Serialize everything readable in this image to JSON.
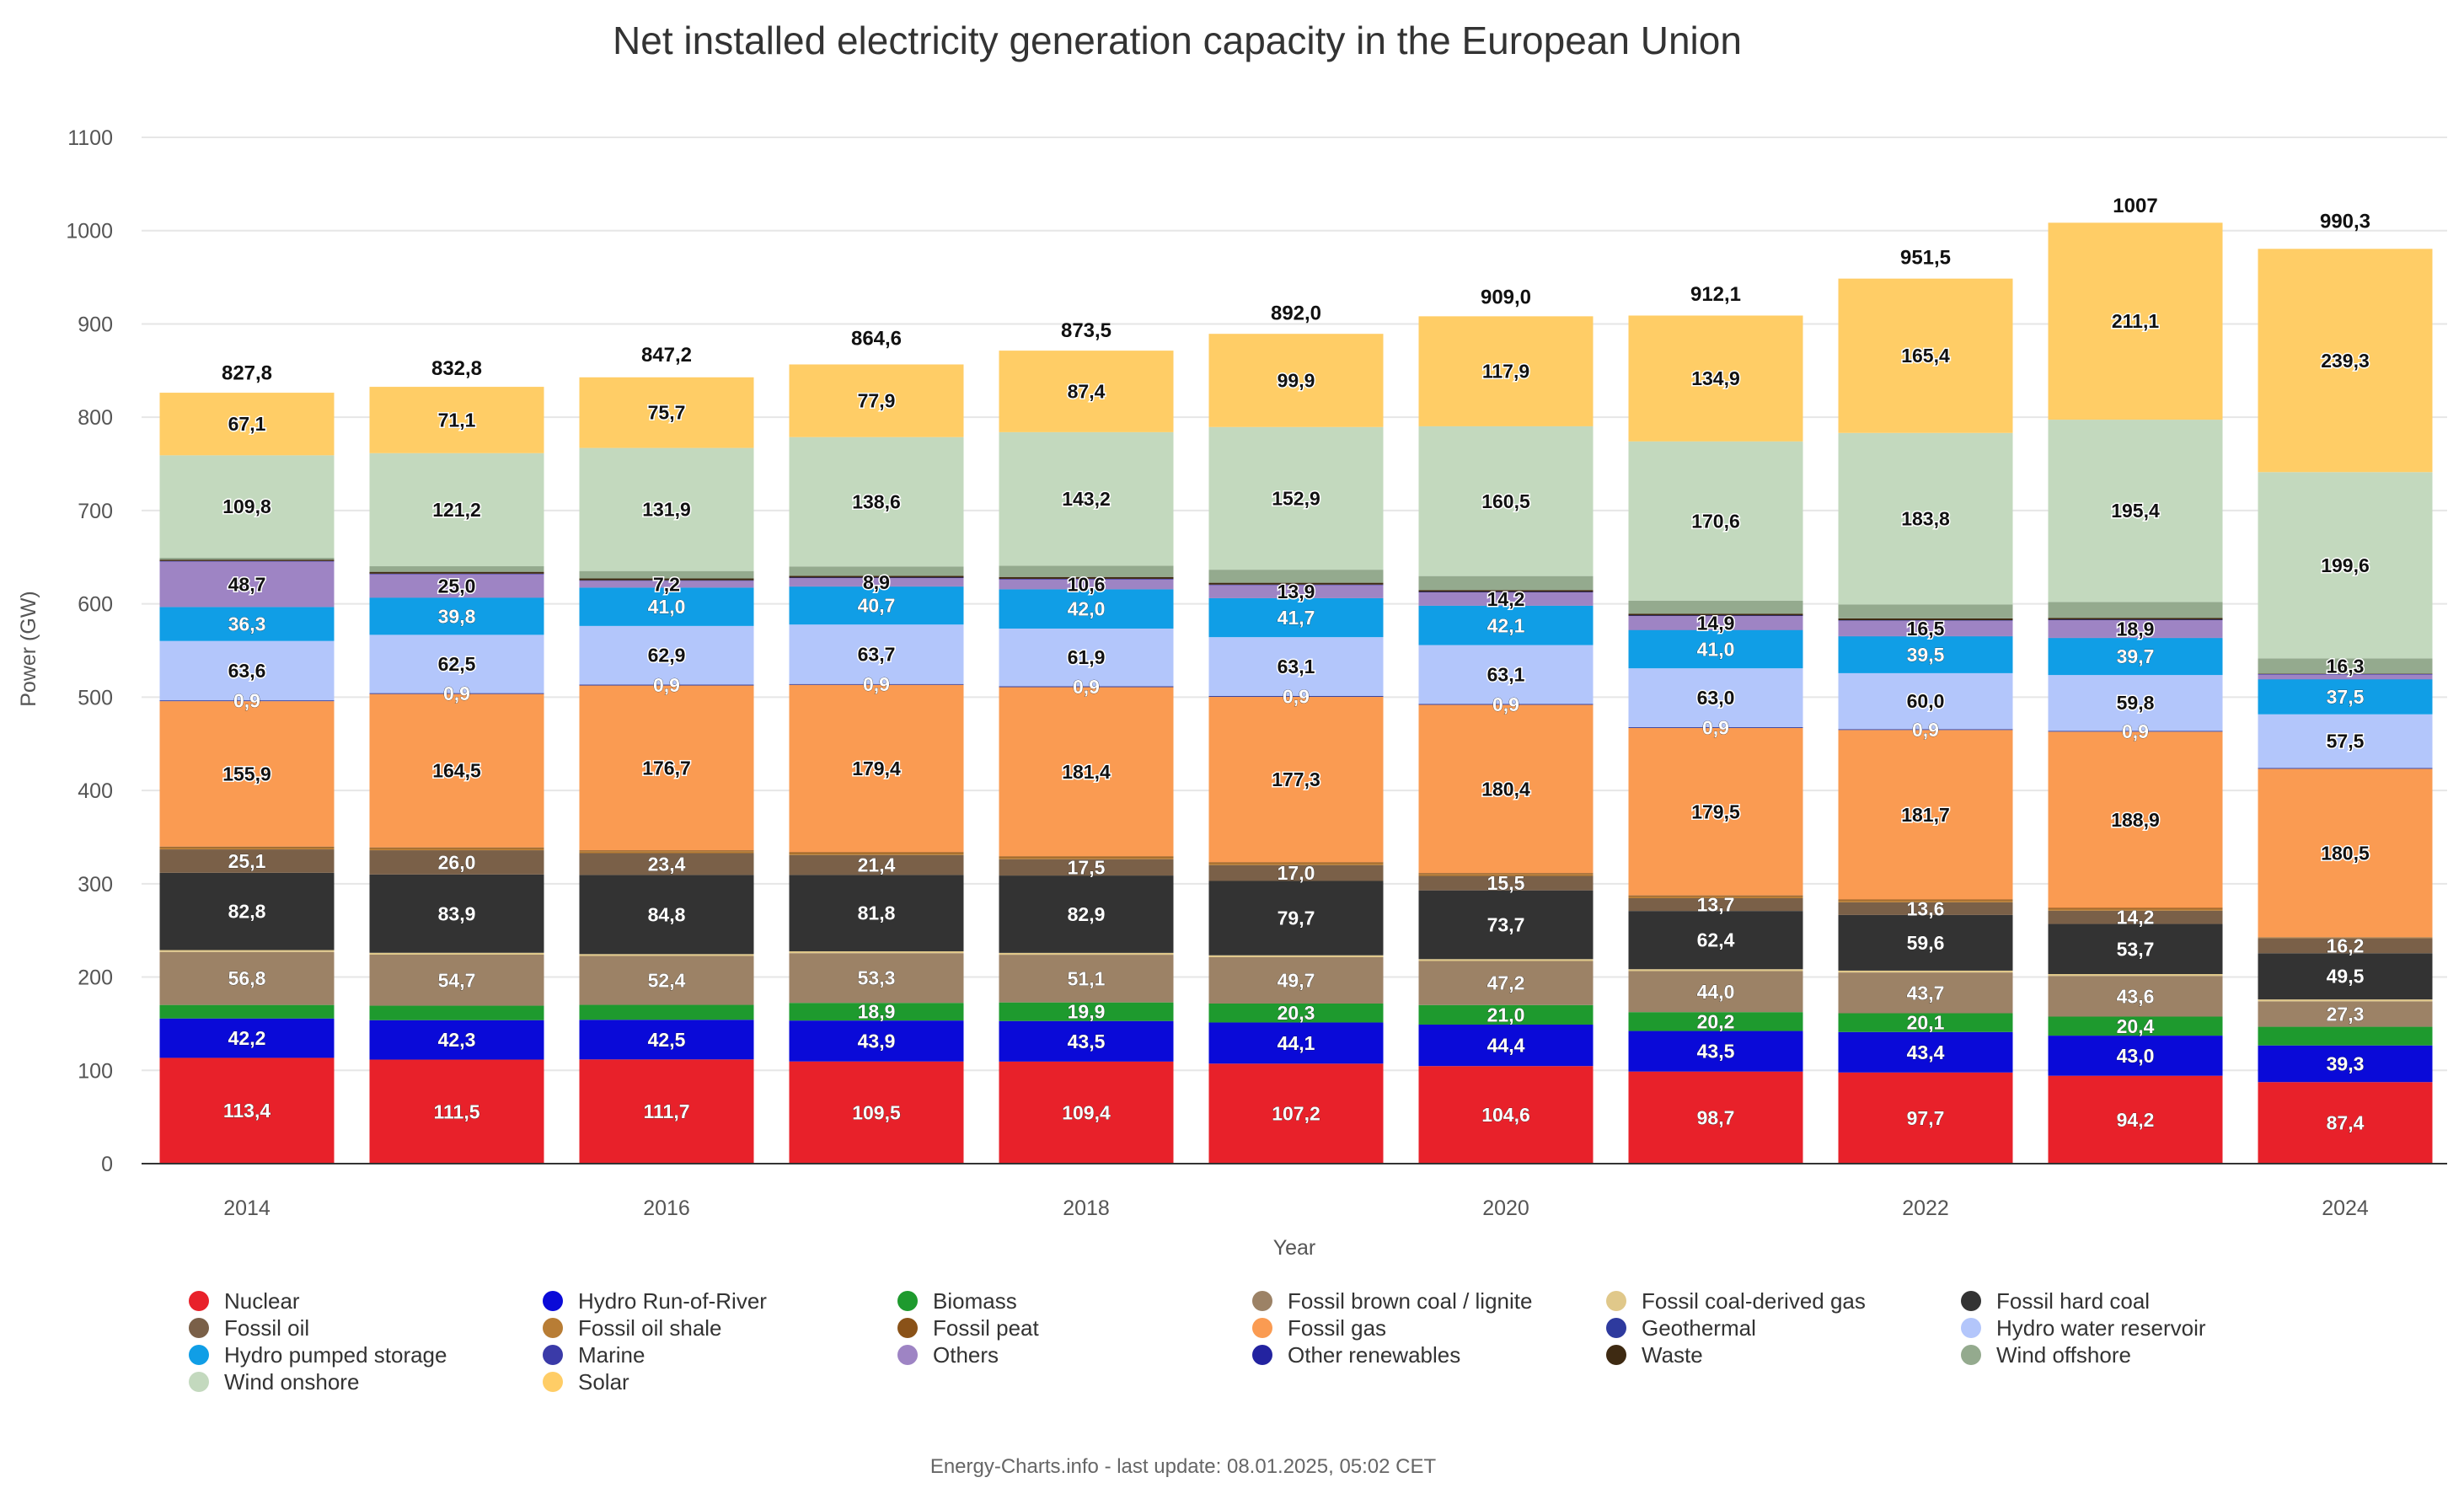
{
  "chart_data": {
    "type": "bar",
    "stacked": true,
    "title": "Net installed electricity generation capacity in the European Union",
    "xlabel": "Year",
    "ylabel": "Power (GW)",
    "ylim": [
      0,
      1100
    ],
    "yticks": [
      "0",
      "100",
      "200",
      "300",
      "400",
      "500",
      "600",
      "700",
      "800",
      "900",
      "1000",
      "1100"
    ],
    "ytick_values": [
      0,
      100,
      200,
      300,
      400,
      500,
      600,
      700,
      800,
      900,
      1000,
      1100
    ],
    "xtick_labels": [
      "2014",
      "",
      "2016",
      "",
      "2018",
      "",
      "2020",
      "",
      "2022",
      "",
      "2024"
    ],
    "categories": [
      "2014",
      "2015",
      "2016",
      "2017",
      "2018",
      "2019",
      "2020",
      "2021",
      "2022",
      "2023",
      "2024"
    ],
    "totals": [
      827.8,
      832.8,
      847.2,
      864.6,
      873.5,
      892.0,
      909.0,
      912.1,
      951.5,
      1007,
      990.3
    ],
    "total_labels": [
      "827,8",
      "832,8",
      "847,2",
      "864,6",
      "873,5",
      "892,0",
      "909,0",
      "912,1",
      "951,5",
      "1007",
      "990,3"
    ],
    "series": [
      {
        "name": "Nuclear",
        "color": "#e8212a",
        "values": [
          113.4,
          111.5,
          111.7,
          109.5,
          109.4,
          107.2,
          104.6,
          98.7,
          97.7,
          94.2,
          87.4
        ],
        "labels": [
          "113,4",
          "111,5",
          "111,7",
          "109,5",
          "109,4",
          "107,2",
          "104,6",
          "98,7",
          "97,7",
          "94,2",
          "87,4"
        ]
      },
      {
        "name": "Hydro Run-of-River",
        "color": "#0a0ad8",
        "values": [
          42.2,
          42.3,
          42.5,
          43.9,
          43.5,
          44.1,
          44.4,
          43.5,
          43.4,
          43.0,
          39.3
        ],
        "labels": [
          "42,2",
          "42,3",
          "42,5",
          "43,9",
          "43,5",
          "44,1",
          "44,4",
          "43,5",
          "43,4",
          "43,0",
          "39,3"
        ]
      },
      {
        "name": "Biomass",
        "color": "#1e9a2e",
        "values": [
          14.5,
          15.5,
          16.0,
          18.9,
          19.9,
          20.3,
          21.0,
          20.2,
          20.1,
          20.4,
          20.0
        ],
        "labels": [
          "",
          "",
          "",
          "18,9",
          "19,9",
          "20,3",
          "21,0",
          "20,2",
          "20,1",
          "20,4",
          ""
        ]
      },
      {
        "name": "Fossil brown coal / lignite",
        "color": "#9c8266",
        "values": [
          56.8,
          54.7,
          52.4,
          53.3,
          51.1,
          49.7,
          47.2,
          44.0,
          43.7,
          43.6,
          27.3
        ],
        "labels": [
          "56,8",
          "54,7",
          "52,4",
          "53,3",
          "51,1",
          "49,7",
          "47,2",
          "44,0",
          "43,7",
          "43,6",
          "27,3"
        ]
      },
      {
        "name": "Fossil coal-derived gas",
        "color": "#e0c88a",
        "values": [
          2.0,
          2.0,
          2.0,
          2.0,
          2.0,
          2.0,
          2.0,
          2.0,
          2.0,
          2.0,
          2.0
        ],
        "labels": [
          "",
          "",
          "",
          "",
          "",
          "",
          "",
          "",
          "",
          "",
          ""
        ]
      },
      {
        "name": "Fossil hard coal",
        "color": "#333333",
        "values": [
          82.8,
          83.9,
          84.8,
          81.8,
          82.9,
          79.7,
          73.7,
          62.4,
          59.6,
          53.7,
          49.5
        ],
        "labels": [
          "82,8",
          "83,9",
          "84,8",
          "81,8",
          "82,9",
          "79,7",
          "73,7",
          "62,4",
          "59,6",
          "53,7",
          "49,5"
        ]
      },
      {
        "name": "Fossil oil",
        "color": "#7a6048",
        "values": [
          25.1,
          26.0,
          23.4,
          21.4,
          17.5,
          17.0,
          15.5,
          13.7,
          13.6,
          14.2,
          16.2
        ],
        "labels": [
          "25,1",
          "26,0",
          "23,4",
          "21,4",
          "17,5",
          "17,0",
          "15,5",
          "13,7",
          "13,6",
          "14,2",
          "16,2"
        ]
      },
      {
        "name": "Fossil oil shale",
        "color": "#b87d35",
        "values": [
          2.0,
          2.0,
          2.0,
          2.0,
          2.0,
          2.0,
          2.0,
          2.0,
          2.0,
          2.0,
          0.5
        ],
        "labels": [
          "",
          "",
          "",
          "",
          "",
          "",
          "",
          "",
          "",
          "",
          ""
        ]
      },
      {
        "name": "Fossil peat",
        "color": "#8a5218",
        "values": [
          1.0,
          1.0,
          1.0,
          1.0,
          1.0,
          1.0,
          1.0,
          1.0,
          1.0,
          1.0,
          0.5
        ],
        "labels": [
          "",
          "",
          "",
          "",
          "",
          "",
          "",
          "",
          "",
          "",
          ""
        ]
      },
      {
        "name": "Fossil gas",
        "color": "#fa9b52",
        "values": [
          155.9,
          164.5,
          176.7,
          179.4,
          181.4,
          177.3,
          180.4,
          179.5,
          181.7,
          188.9,
          180.5
        ],
        "labels": [
          "155,9",
          "164,5",
          "176,7",
          "179,4",
          "181,4",
          "177,3",
          "180,4",
          "179,5",
          "181,7",
          "188,9",
          "180,5"
        ]
      },
      {
        "name": "Geothermal",
        "color": "#2e3a9e",
        "values": [
          0.9,
          0.9,
          0.9,
          0.9,
          0.9,
          0.9,
          0.9,
          0.9,
          0.9,
          0.9,
          0.9
        ],
        "labels": [
          "0,9",
          "0,9",
          "0,9",
          "0,9",
          "0,9",
          "0,9",
          "0,9",
          "0,9",
          "0,9",
          "0,9",
          ""
        ]
      },
      {
        "name": "Hydro water reservoir",
        "color": "#b3c6fb",
        "values": [
          63.6,
          62.5,
          62.9,
          63.7,
          61.9,
          63.1,
          63.1,
          63.0,
          60.0,
          59.8,
          57.5
        ],
        "labels": [
          "63,6",
          "62,5",
          "62,9",
          "63,7",
          "61,9",
          "63,1",
          "63,1",
          "63,0",
          "60,0",
          "59,8",
          "57,5"
        ]
      },
      {
        "name": "Hydro pumped storage",
        "color": "#109ee6",
        "values": [
          36.3,
          39.8,
          41.0,
          40.7,
          42.0,
          41.7,
          42.1,
          41.0,
          39.5,
          39.7,
          37.5
        ],
        "labels": [
          "36,3",
          "39,8",
          "41,0",
          "40,7",
          "42,0",
          "41,7",
          "42,1",
          "41,0",
          "39,5",
          "39,7",
          "37,5"
        ]
      },
      {
        "name": "Marine",
        "color": "#3a3aa8",
        "values": [
          0.2,
          0.2,
          0.2,
          0.2,
          0.2,
          0.2,
          0.2,
          0.2,
          0.2,
          0.2,
          0.2
        ],
        "labels": [
          "",
          "",
          "",
          "",
          "",
          "",
          "",
          "",
          "",
          "",
          ""
        ]
      },
      {
        "name": "Others",
        "color": "#9e84c4",
        "values": [
          48.7,
          25.0,
          7.2,
          8.9,
          10.6,
          13.9,
          14.2,
          14.9,
          16.5,
          18.9,
          5.0
        ],
        "labels": [
          "48,7",
          "25,0",
          "7,2",
          "8,9",
          "10,6",
          "13,9",
          "14,2",
          "14,9",
          "16,5",
          "18,9",
          ""
        ]
      },
      {
        "name": "Other renewables",
        "color": "#2323a0",
        "values": [
          0.5,
          0.5,
          0.5,
          0.5,
          0.5,
          0.5,
          0.5,
          0.5,
          0.5,
          0.5,
          0.5
        ],
        "labels": [
          "",
          "",
          "",
          "",
          "",
          "",
          "",
          "",
          "",
          "",
          ""
        ]
      },
      {
        "name": "Waste",
        "color": "#3e2a12",
        "values": [
          1.5,
          2.0,
          2.0,
          2.0,
          2.0,
          2.0,
          2.0,
          2.0,
          2.0,
          2.0,
          0.5
        ],
        "labels": [
          "",
          "",
          "",
          "",
          "",
          "",
          "",
          "",
          "",
          "",
          ""
        ]
      },
      {
        "name": "Wind offshore",
        "color": "#94aa8e",
        "values": [
          2.0,
          6.0,
          8.0,
          10.0,
          12.0,
          14.0,
          15.0,
          14.0,
          15.0,
          17.0,
          16.3
        ],
        "labels": [
          "",
          "",
          "",
          "",
          "",
          "",
          "",
          "",
          "",
          "",
          "16,3"
        ]
      },
      {
        "name": "Wind onshore",
        "color": "#c3d9be",
        "values": [
          109.8,
          121.2,
          131.9,
          138.6,
          143.2,
          152.9,
          160.5,
          170.6,
          183.8,
          195.4,
          199.6
        ],
        "labels": [
          "109,8",
          "121,2",
          "131,9",
          "138,6",
          "143,2",
          "152,9",
          "160,5",
          "170,6",
          "183,8",
          "195,4",
          "199,6"
        ]
      },
      {
        "name": "Solar",
        "color": "#ffcd66",
        "values": [
          67.1,
          71.1,
          75.7,
          77.9,
          87.4,
          99.9,
          117.9,
          134.9,
          165.4,
          211.1,
          239.3
        ],
        "labels": [
          "67,1",
          "71,1",
          "75,7",
          "77,9",
          "87,4",
          "99,9",
          "117,9",
          "134,9",
          "165,4",
          "211,1",
          "239,3"
        ]
      }
    ],
    "legend": {
      "placement": "bottom",
      "items": [
        {
          "name": "Nuclear",
          "color": "#e8212a"
        },
        {
          "name": "Hydro Run-of-River",
          "color": "#0a0ad8"
        },
        {
          "name": "Biomass",
          "color": "#1e9a2e"
        },
        {
          "name": "Fossil brown coal / lignite",
          "color": "#9c8266"
        },
        {
          "name": "Fossil coal-derived gas",
          "color": "#e0c88a"
        },
        {
          "name": "Fossil hard coal",
          "color": "#333333"
        },
        {
          "name": "Fossil oil",
          "color": "#7a6048"
        },
        {
          "name": "Fossil oil shale",
          "color": "#b87d35"
        },
        {
          "name": "Fossil peat",
          "color": "#8a5218"
        },
        {
          "name": "Fossil gas",
          "color": "#fa9b52"
        },
        {
          "name": "Geothermal",
          "color": "#2e3a9e"
        },
        {
          "name": "Hydro water reservoir",
          "color": "#b3c6fb"
        },
        {
          "name": "Hydro pumped storage",
          "color": "#109ee6"
        },
        {
          "name": "Marine",
          "color": "#3a3aa8"
        },
        {
          "name": "Others",
          "color": "#9e84c4"
        },
        {
          "name": "Other renewables",
          "color": "#2323a0"
        },
        {
          "name": "Waste",
          "color": "#3e2a12"
        },
        {
          "name": "Wind offshore",
          "color": "#94aa8e"
        },
        {
          "name": "Wind onshore",
          "color": "#c3d9be"
        },
        {
          "name": "Solar",
          "color": "#ffcd66"
        }
      ]
    },
    "credit": "Energy-Charts.info - last update: 08.01.2025, 05:02 CET",
    "grid": true
  }
}
